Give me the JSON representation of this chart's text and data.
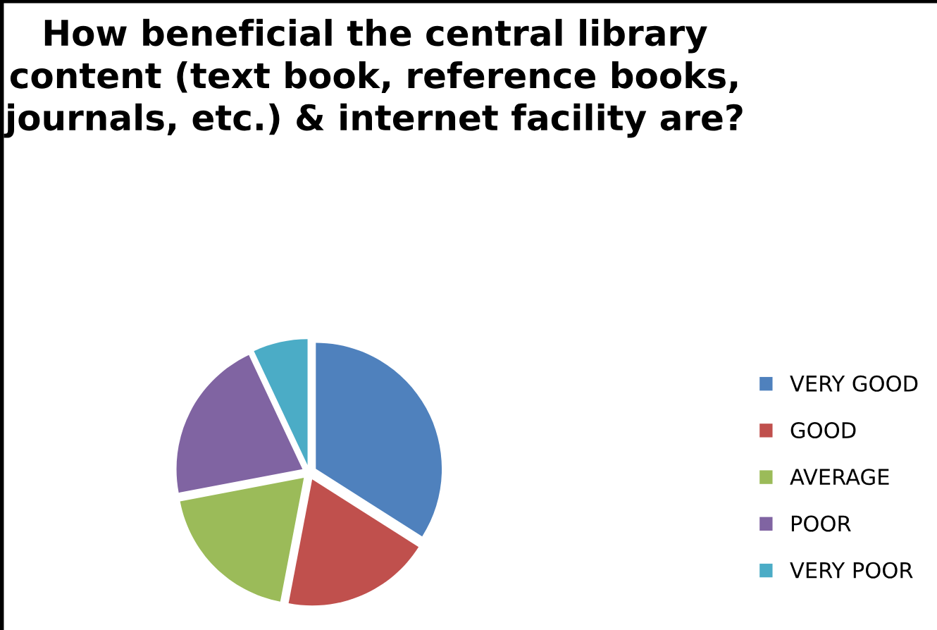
{
  "chart_data": {
    "type": "pie",
    "title": "How beneficial the central library content (text book, reference books, journals, etc.) & internet facility are?",
    "categories": [
      "VERY GOOD",
      "GOOD",
      "AVERAGE",
      "POOR",
      "VERY POOR"
    ],
    "values": [
      34,
      19,
      19,
      21,
      7
    ],
    "colors": [
      "#4f81bd",
      "#c0504d",
      "#9bbb59",
      "#8064a2",
      "#4bacc6"
    ],
    "legend": "right"
  }
}
